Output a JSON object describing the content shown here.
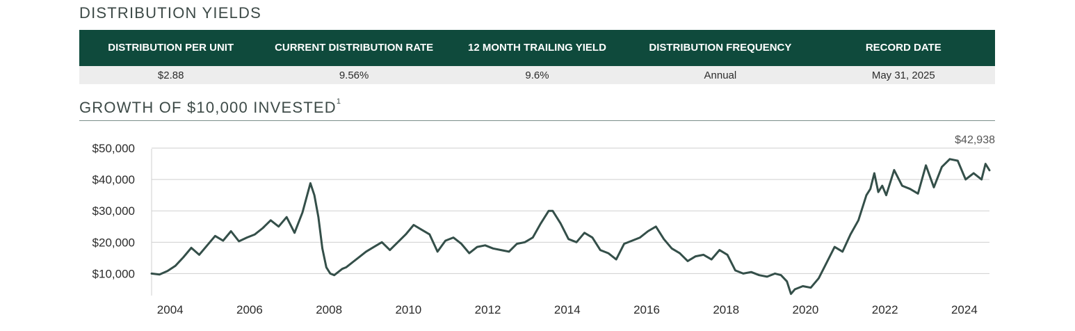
{
  "distribution_yields": {
    "title": "DISTRIBUTION YIELDS",
    "columns": [
      "DISTRIBUTION PER UNIT",
      "CURRENT DISTRIBUTION RATE",
      "12 MONTH TRAILING YIELD",
      "DISTRIBUTION FREQUENCY",
      "RECORD DATE"
    ],
    "values": [
      "$2.88",
      "9.56%",
      "9.6%",
      "Annual",
      "May 31, 2025"
    ]
  },
  "growth": {
    "title": "GROWTH OF $10,000 INVESTED",
    "footnote": "1"
  },
  "colors": {
    "header_bg": "#0f4a3c",
    "row_bg": "#ededed",
    "line": "#344f49",
    "grid": "#cfcfcf"
  },
  "chart_data": {
    "type": "line",
    "xlim": [
      2003.9,
      2025.0
    ],
    "ylim": [
      3000,
      52000
    ],
    "yticks": [
      10000,
      20000,
      30000,
      40000,
      50000
    ],
    "ytick_labels": [
      "$10,000",
      "$20,000",
      "$30,000",
      "$40,000",
      "$50,000"
    ],
    "xticks": [
      2004,
      2006,
      2008,
      2010,
      2012,
      2014,
      2016,
      2018,
      2020,
      2022,
      2024
    ],
    "xtick_labels": [
      "2004",
      "2006",
      "2008",
      "2010",
      "2012",
      "2014",
      "2016",
      "2018",
      "2020",
      "2022",
      "2024"
    ],
    "grid": true,
    "annotation": "$42,938",
    "series": [
      {
        "x": [
          2003.9,
          2004.1,
          2004.3,
          2004.5,
          2004.7,
          2004.9,
          2005.1,
          2005.3,
          2005.5,
          2005.7,
          2005.9,
          2006.1,
          2006.3,
          2006.5,
          2006.7,
          2006.9,
          2007.1,
          2007.3,
          2007.5,
          2007.7,
          2007.9,
          2008.0,
          2008.1,
          2008.2,
          2008.3,
          2008.4,
          2008.5,
          2008.6,
          2008.7,
          2008.8,
          2008.9,
          2009.1,
          2009.3,
          2009.5,
          2009.7,
          2009.9,
          2010.1,
          2010.3,
          2010.5,
          2010.7,
          2010.9,
          2011.1,
          2011.3,
          2011.5,
          2011.7,
          2011.9,
          2012.1,
          2012.3,
          2012.5,
          2012.7,
          2012.9,
          2013.1,
          2013.3,
          2013.5,
          2013.7,
          2013.9,
          2014.0,
          2014.2,
          2014.4,
          2014.6,
          2014.8,
          2015.0,
          2015.2,
          2015.4,
          2015.6,
          2015.8,
          2016.0,
          2016.2,
          2016.4,
          2016.6,
          2016.8,
          2017.0,
          2017.2,
          2017.4,
          2017.6,
          2017.8,
          2018.0,
          2018.2,
          2018.4,
          2018.6,
          2018.8,
          2019.0,
          2019.2,
          2019.4,
          2019.6,
          2019.75,
          2019.9,
          2020.0,
          2020.1,
          2020.3,
          2020.5,
          2020.7,
          2020.9,
          2021.1,
          2021.3,
          2021.5,
          2021.7,
          2021.9,
          2022.0,
          2022.1,
          2022.2,
          2022.3,
          2022.4,
          2022.6,
          2022.8,
          2023.0,
          2023.2,
          2023.4,
          2023.6,
          2023.8,
          2024.0,
          2024.2,
          2024.4,
          2024.6,
          2024.8,
          2024.9,
          2025.0
        ],
        "y": [
          10000,
          9700,
          10800,
          12500,
          15200,
          18200,
          16000,
          19000,
          22000,
          20500,
          23500,
          20300,
          21500,
          22500,
          24500,
          27000,
          25000,
          28000,
          23000,
          29500,
          38800,
          35000,
          28000,
          18000,
          12000,
          10000,
          9500,
          10500,
          11500,
          12000,
          13000,
          15000,
          17000,
          18500,
          20000,
          17500,
          20000,
          22500,
          25500,
          24000,
          22500,
          17000,
          20500,
          21500,
          19500,
          16500,
          18500,
          19000,
          18000,
          17500,
          17000,
          19500,
          20000,
          21500,
          26000,
          30000,
          30000,
          26000,
          21000,
          20000,
          23000,
          21500,
          17500,
          16500,
          14500,
          19500,
          20500,
          21500,
          23500,
          25000,
          21000,
          18000,
          16500,
          14000,
          15500,
          16000,
          14500,
          17500,
          16000,
          11000,
          10000,
          10500,
          9500,
          9000,
          10000,
          9500,
          7500,
          3500,
          5000,
          6000,
          5500,
          8500,
          13500,
          18500,
          17000,
          22500,
          27000,
          35000,
          37000,
          42000,
          36000,
          38000,
          35000,
          43000,
          38000,
          37000,
          35500,
          44500,
          37500,
          44000,
          46500,
          46000,
          40000,
          42000,
          40000,
          45000,
          42938
        ]
      }
    ]
  }
}
